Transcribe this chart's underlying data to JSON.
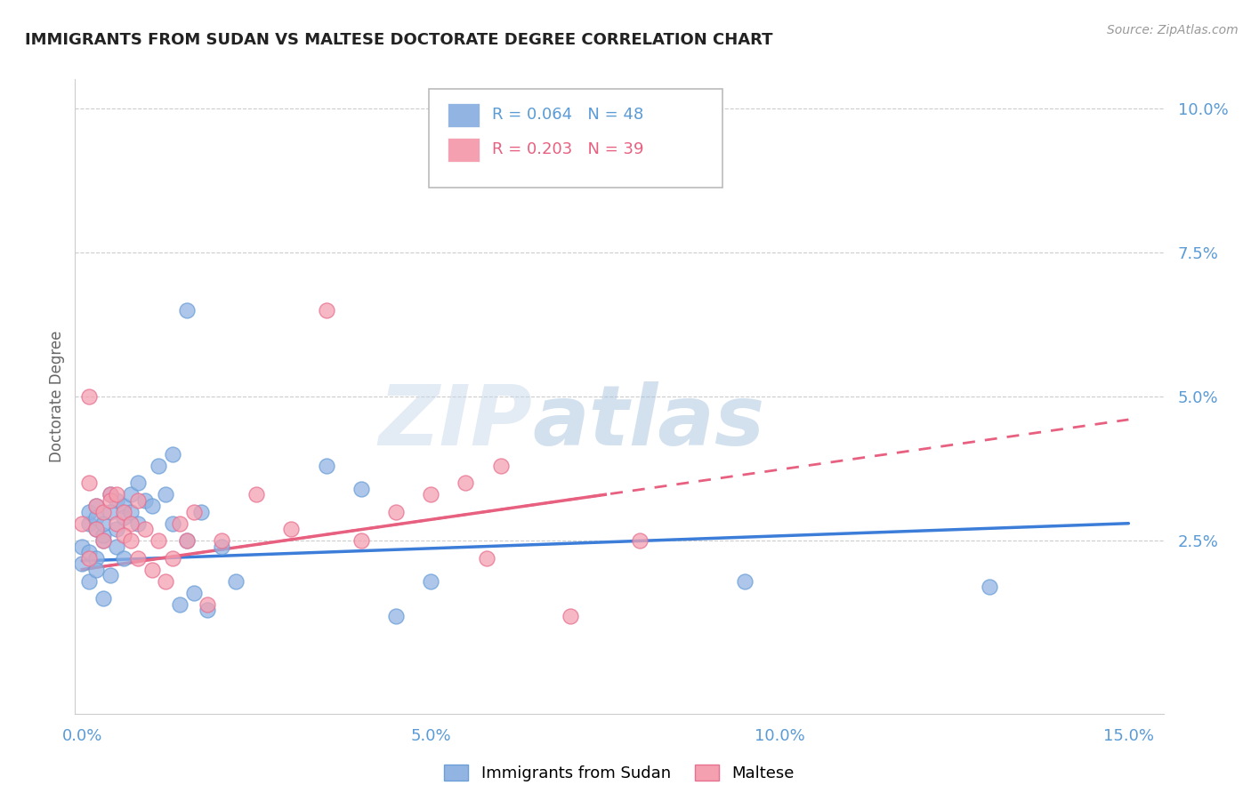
{
  "title": "IMMIGRANTS FROM SUDAN VS MALTESE DOCTORATE DEGREE CORRELATION CHART",
  "source": "Source: ZipAtlas.com",
  "ylabel": "Doctorate Degree",
  "xlim": [
    -0.001,
    0.155
  ],
  "ylim": [
    -0.005,
    0.105
  ],
  "series1_name": "Immigrants from Sudan",
  "series1_color": "#92b4e3",
  "series1_border": "#6a9fd8",
  "series1_R": 0.064,
  "series1_N": 48,
  "series2_name": "Maltese",
  "series2_color": "#f4a0b0",
  "series2_border": "#e87090",
  "series2_R": 0.203,
  "series2_N": 39,
  "series1_x": [
    0.0,
    0.001,
    0.0,
    0.001,
    0.002,
    0.001,
    0.002,
    0.003,
    0.001,
    0.002,
    0.003,
    0.002,
    0.004,
    0.003,
    0.002,
    0.005,
    0.004,
    0.003,
    0.006,
    0.005,
    0.004,
    0.007,
    0.006,
    0.005,
    0.008,
    0.007,
    0.006,
    0.009,
    0.008,
    0.01,
    0.012,
    0.011,
    0.013,
    0.015,
    0.014,
    0.016,
    0.018,
    0.02,
    0.035,
    0.04,
    0.045,
    0.05,
    0.015,
    0.013,
    0.017,
    0.13,
    0.095,
    0.022
  ],
  "series1_y": [
    0.024,
    0.028,
    0.021,
    0.03,
    0.027,
    0.023,
    0.031,
    0.025,
    0.018,
    0.029,
    0.026,
    0.022,
    0.033,
    0.028,
    0.02,
    0.032,
    0.03,
    0.015,
    0.031,
    0.027,
    0.019,
    0.033,
    0.029,
    0.024,
    0.035,
    0.03,
    0.022,
    0.032,
    0.028,
    0.031,
    0.033,
    0.038,
    0.028,
    0.025,
    0.014,
    0.016,
    0.013,
    0.024,
    0.038,
    0.034,
    0.012,
    0.018,
    0.065,
    0.04,
    0.03,
    0.017,
    0.018,
    0.018
  ],
  "series2_x": [
    0.0,
    0.001,
    0.001,
    0.002,
    0.001,
    0.003,
    0.002,
    0.004,
    0.003,
    0.005,
    0.004,
    0.006,
    0.005,
    0.007,
    0.006,
    0.008,
    0.007,
    0.009,
    0.008,
    0.01,
    0.011,
    0.012,
    0.013,
    0.015,
    0.014,
    0.016,
    0.018,
    0.02,
    0.025,
    0.03,
    0.035,
    0.04,
    0.045,
    0.05,
    0.055,
    0.06,
    0.07,
    0.08,
    0.058
  ],
  "series2_y": [
    0.028,
    0.035,
    0.022,
    0.031,
    0.05,
    0.03,
    0.027,
    0.033,
    0.025,
    0.028,
    0.032,
    0.03,
    0.033,
    0.028,
    0.026,
    0.032,
    0.025,
    0.027,
    0.022,
    0.02,
    0.025,
    0.018,
    0.022,
    0.025,
    0.028,
    0.03,
    0.014,
    0.025,
    0.033,
    0.027,
    0.065,
    0.025,
    0.03,
    0.033,
    0.035,
    0.038,
    0.012,
    0.025,
    0.022
  ],
  "trend1_x0": 0.0,
  "trend1_y0": 0.0215,
  "trend1_x1": 0.15,
  "trend1_y1": 0.028,
  "trend2_x0": 0.0,
  "trend2_y0": 0.02,
  "trend2_x1": 0.15,
  "trend2_y1": 0.046,
  "trend2_solid_x1": 0.075,
  "trend2_solid_y1": 0.033,
  "watermark_zip": "ZIP",
  "watermark_atlas": "atlas",
  "background_color": "#ffffff",
  "grid_color": "#cccccc",
  "title_color": "#222222",
  "axis_color": "#5b9bd5"
}
